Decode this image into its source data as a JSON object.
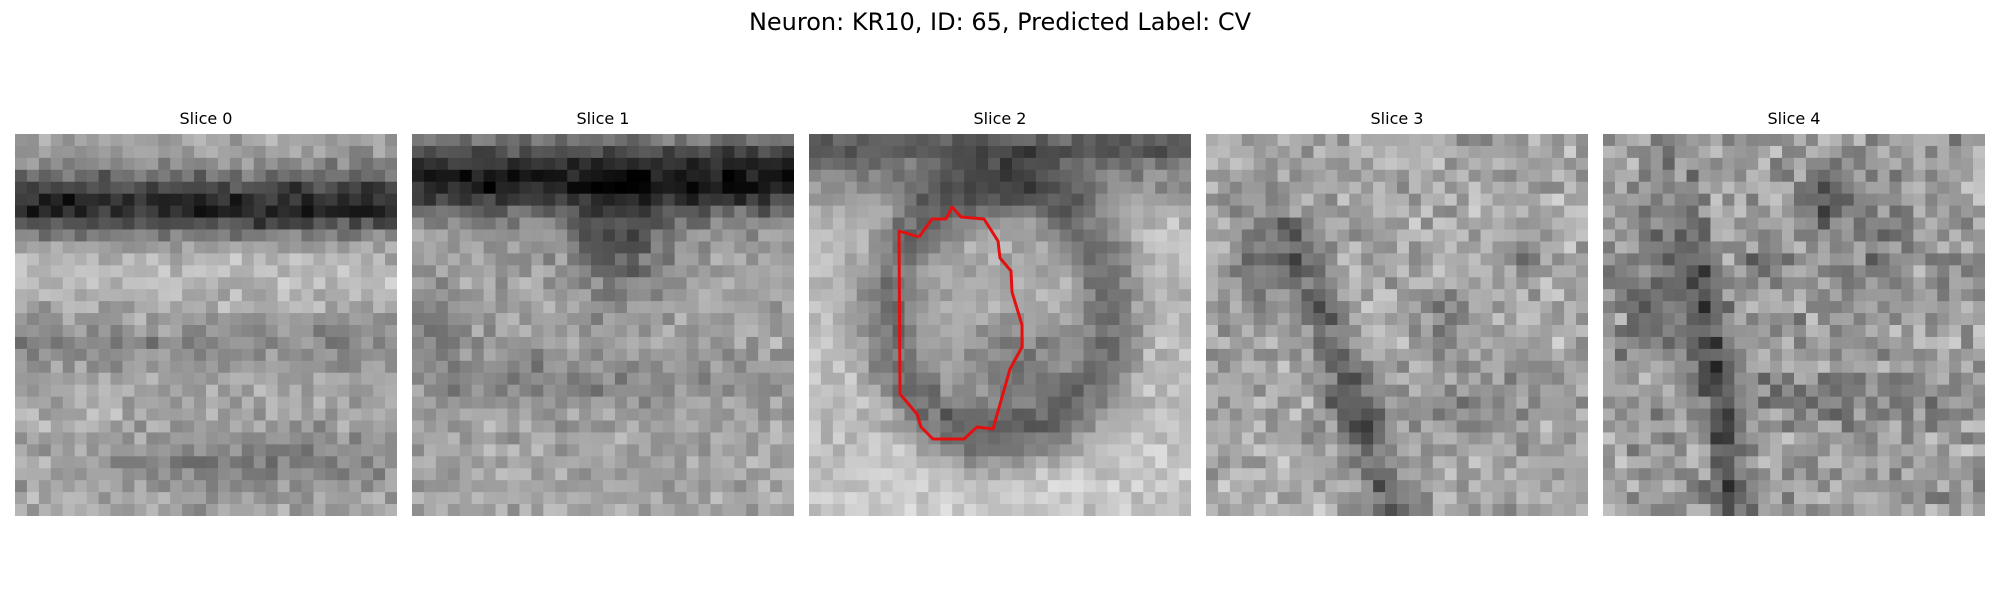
{
  "figure": {
    "title": "Neuron: KR10, ID: 65, Predicted Label: CV"
  },
  "slices": [
    {
      "title": "Slice 0"
    },
    {
      "title": "Slice 1"
    },
    {
      "title": "Slice 2"
    },
    {
      "title": "Slice 3"
    },
    {
      "title": "Slice 4"
    }
  ],
  "overlay": {
    "slice": "Slice 2",
    "color": "#e41010"
  }
}
